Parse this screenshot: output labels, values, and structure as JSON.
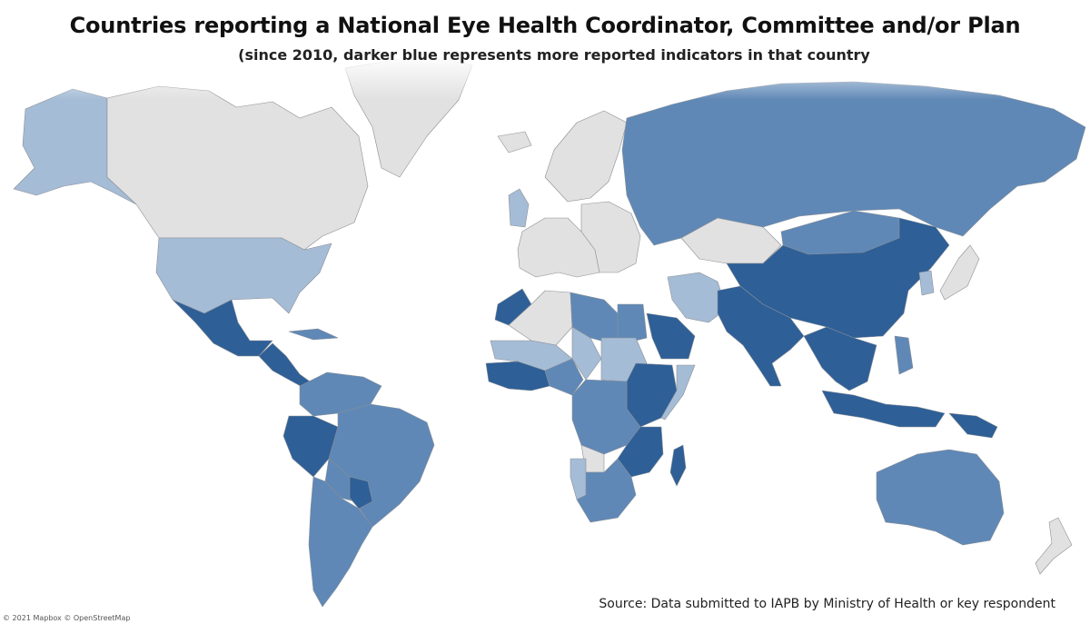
{
  "title": "Countries reporting a National Eye Health Coordinator, Committee and/or Plan",
  "subtitle": "(since 2010, darker blue represents more reported indicators in that country",
  "source": "Source: Data submitted to IAPB by Ministry of Health or key respondent",
  "attribution": "© 2021 Mapbox  © OpenStreetMap",
  "colors": {
    "no_data": "#e1e1e1",
    "level_1": "#a5bcd6",
    "level_2": "#5f88b6",
    "level_3": "#2e5f97",
    "ocean": "#ffffff"
  },
  "regions": [
    {
      "name": "Alaska",
      "level": 1
    },
    {
      "name": "Canada",
      "level": 0
    },
    {
      "name": "Greenland",
      "level": 0
    },
    {
      "name": "Iceland",
      "level": 0
    },
    {
      "name": "United States",
      "level": 1
    },
    {
      "name": "Mexico",
      "level": 3
    },
    {
      "name": "Central America",
      "level": 3
    },
    {
      "name": "Cuba",
      "level": 2
    },
    {
      "name": "Colombia / Venezuela",
      "level": 2
    },
    {
      "name": "Peru",
      "level": 3
    },
    {
      "name": "Brazil",
      "level": 2
    },
    {
      "name": "Bolivia",
      "level": 2
    },
    {
      "name": "Paraguay",
      "level": 3
    },
    {
      "name": "Argentina / Chile",
      "level": 2
    },
    {
      "name": "United Kingdom",
      "level": 1
    },
    {
      "name": "Scandinavia",
      "level": 0
    },
    {
      "name": "Western Europe",
      "level": 0
    },
    {
      "name": "Eastern Europe",
      "level": 0
    },
    {
      "name": "Russia",
      "level": 2
    },
    {
      "name": "Kazakhstan",
      "level": 0
    },
    {
      "name": "Mongolia",
      "level": 2
    },
    {
      "name": "China",
      "level": 3
    },
    {
      "name": "Japan",
      "level": 0
    },
    {
      "name": "Korea",
      "level": 1
    },
    {
      "name": "Iran",
      "level": 1
    },
    {
      "name": "South Asia",
      "level": 3
    },
    {
      "name": "Southeast Asia",
      "level": 3
    },
    {
      "name": "Indonesia",
      "level": 3
    },
    {
      "name": "Papua New Guinea",
      "level": 3
    },
    {
      "name": "Philippines",
      "level": 2
    },
    {
      "name": "Australia",
      "level": 2
    },
    {
      "name": "New Zealand",
      "level": 0
    },
    {
      "name": "Morocco",
      "level": 3
    },
    {
      "name": "Algeria",
      "level": 0
    },
    {
      "name": "Libya",
      "level": 2
    },
    {
      "name": "Egypt",
      "level": 2
    },
    {
      "name": "Saudi Arabia",
      "level": 3
    },
    {
      "name": "Sahel",
      "level": 1
    },
    {
      "name": "West Africa",
      "level": 3
    },
    {
      "name": "Nigeria",
      "level": 2
    },
    {
      "name": "Chad",
      "level": 1
    },
    {
      "name": "Sudan",
      "level": 1
    },
    {
      "name": "Ethiopia / Kenya",
      "level": 3
    },
    {
      "name": "Somalia",
      "level": 1
    },
    {
      "name": "Central Africa",
      "level": 2
    },
    {
      "name": "Angola",
      "level": 0
    },
    {
      "name": "Tanzania / Mozambique",
      "level": 3
    },
    {
      "name": "Southern Africa",
      "level": 2
    },
    {
      "name": "Namibia",
      "level": 1
    },
    {
      "name": "Madagascar",
      "level": 3
    }
  ]
}
